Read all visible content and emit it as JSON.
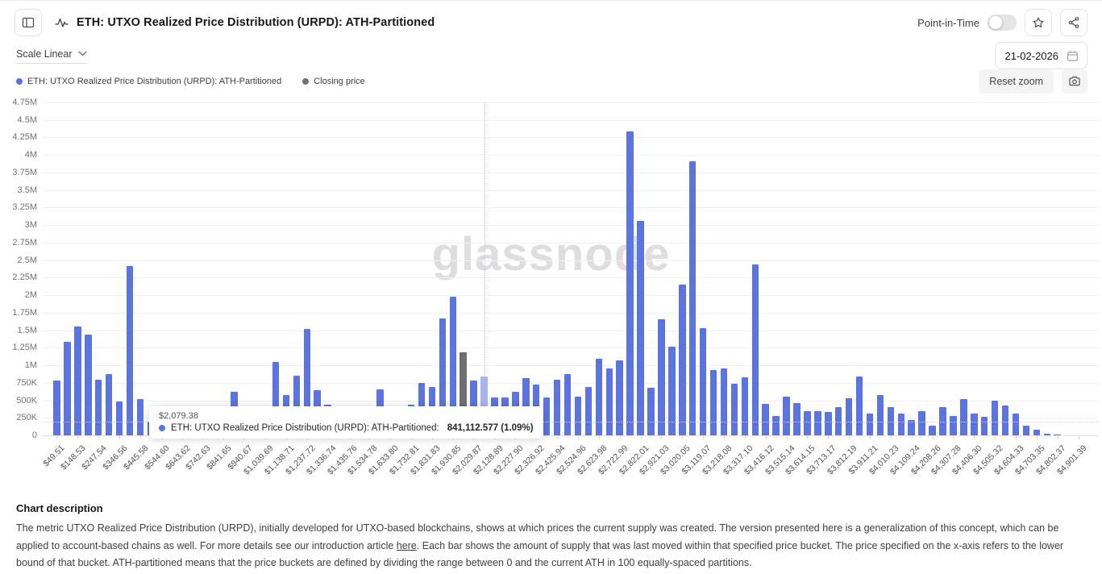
{
  "header": {
    "title": "ETH: UTXO Realized Price Distribution (URPD): ATH-Partitioned",
    "point_in_time_label": "Point-in-Time",
    "point_in_time_state": "off"
  },
  "controls": {
    "scale_label": "Scale Linear",
    "date_value": "21-02-2026",
    "reset_zoom_label": "Reset zoom"
  },
  "legend": {
    "series_label": "ETH: UTXO Realized Price Distribution (URPD): ATH-Partitioned",
    "closing_label": "Closing price"
  },
  "colors": {
    "bar": "#5b74e0",
    "bar_hover": "#a8b4ed",
    "closing_bar": "#6e6e73",
    "legend_closing_dot": "#71717a"
  },
  "watermark": "glassnode",
  "tooltip": {
    "price": "$2,079.38",
    "series": "ETH: UTXO Realized Price Distribution (URPD): ATH-Partitioned:",
    "value": "841,112.577 (1.09%)"
  },
  "description": {
    "heading": "Chart description",
    "body_before_link": "The metric UTXO Realized Price Distribution (URPD), initially developed for UTXO-based blockchains, shows at which prices the current supply was created. The version presented here is a generalization of this concept, which can be applied to account-based chains as well. For more details see our introduction article ",
    "link_text": "here",
    "body_after_link": ". Each bar shows the amount of supply that was last moved within that specified price bucket. The price specified on the x-axis refers to the lower bound of that bucket. ATH-partitioned means that the price buckets are defined by dividing the range between 0 and the current ATH in 100 equally-spaced partitions."
  },
  "chart_data": {
    "type": "bar",
    "title": "ETH: UTXO Realized Price Distribution (URPD): ATH-Partitioned",
    "ylim": [
      0,
      4750000
    ],
    "grid": true,
    "y_ticks": [
      "0",
      "250K",
      "500K",
      "750K",
      "1M",
      "1.25M",
      "1.5M",
      "1.75M",
      "2M",
      "2.25M",
      "2.5M",
      "2.75M",
      "3M",
      "3.25M",
      "3.5M",
      "3.75M",
      "4M",
      "4.25M",
      "4.5M",
      "4.75M"
    ],
    "y_tick_step": 250000,
    "x_tick_labels": [
      "$49.51",
      "$148.53",
      "$247.54",
      "$346.56",
      "$445.58",
      "$544.60",
      "$643.62",
      "$742.63",
      "$841.65",
      "$940.67",
      "$1,039.69",
      "$1,138.71",
      "$1,237.72",
      "$1,336.74",
      "$1,435.76",
      "$1,534.78",
      "$1,633.80",
      "$1,732.81",
      "$1,831.83",
      "$1,930.85",
      "$2,029.87",
      "$2,128.89",
      "$2,227.90",
      "$2,326.92",
      "$2,425.94",
      "$2,524.96",
      "$2,623.98",
      "$2,722.99",
      "$2,822.01",
      "$2,921.03",
      "$3,020.05",
      "$3,119.07",
      "$3,218.08",
      "$3,317.10",
      "$3,416.12",
      "$3,515.14",
      "$3,614.15",
      "$3,713.17",
      "$3,812.19",
      "$3,911.21",
      "$4,010.23",
      "$4,109.24",
      "$4,208.26",
      "$4,307.28",
      "$4,406.30",
      "$4,505.32",
      "$4,604.33",
      "$4,703.35",
      "$4,802.37",
      "$4,901.39"
    ],
    "bucket_width_usd": 49.51,
    "values": [
      785000,
      1340000,
      1550000,
      1440000,
      790000,
      880000,
      485000,
      2420000,
      515000,
      200000,
      200000,
      185000,
      185000,
      350000,
      180000,
      130000,
      220000,
      620000,
      90000,
      150000,
      60000,
      1050000,
      575000,
      850000,
      1520000,
      640000,
      440000,
      80000,
      40000,
      100000,
      200000,
      660000,
      395000,
      250000,
      440000,
      745000,
      690000,
      1670000,
      1980000,
      1190000,
      785000,
      841113,
      545000,
      545000,
      625000,
      815000,
      725000,
      545000,
      790000,
      880000,
      550000,
      690000,
      1090000,
      950000,
      1070000,
      4340000,
      3060000,
      680000,
      1660000,
      1260000,
      2150000,
      3910000,
      1535000,
      930000,
      960000,
      735000,
      830000,
      2435000,
      450000,
      275000,
      555000,
      465000,
      345000,
      345000,
      330000,
      400000,
      530000,
      835000,
      310000,
      575000,
      405000,
      305000,
      220000,
      340000,
      140000,
      405000,
      280000,
      520000,
      310000,
      270000,
      490000,
      425000,
      315000,
      135000,
      80000,
      20000,
      12000,
      0,
      0,
      0
    ],
    "hover_index": 41,
    "hover_value_label": "841,112.577 (1.09%)",
    "closing_price_index": 39,
    "crosshair": {
      "bar_index": 41,
      "y_value": 200000
    },
    "legend_position": "top-left"
  }
}
